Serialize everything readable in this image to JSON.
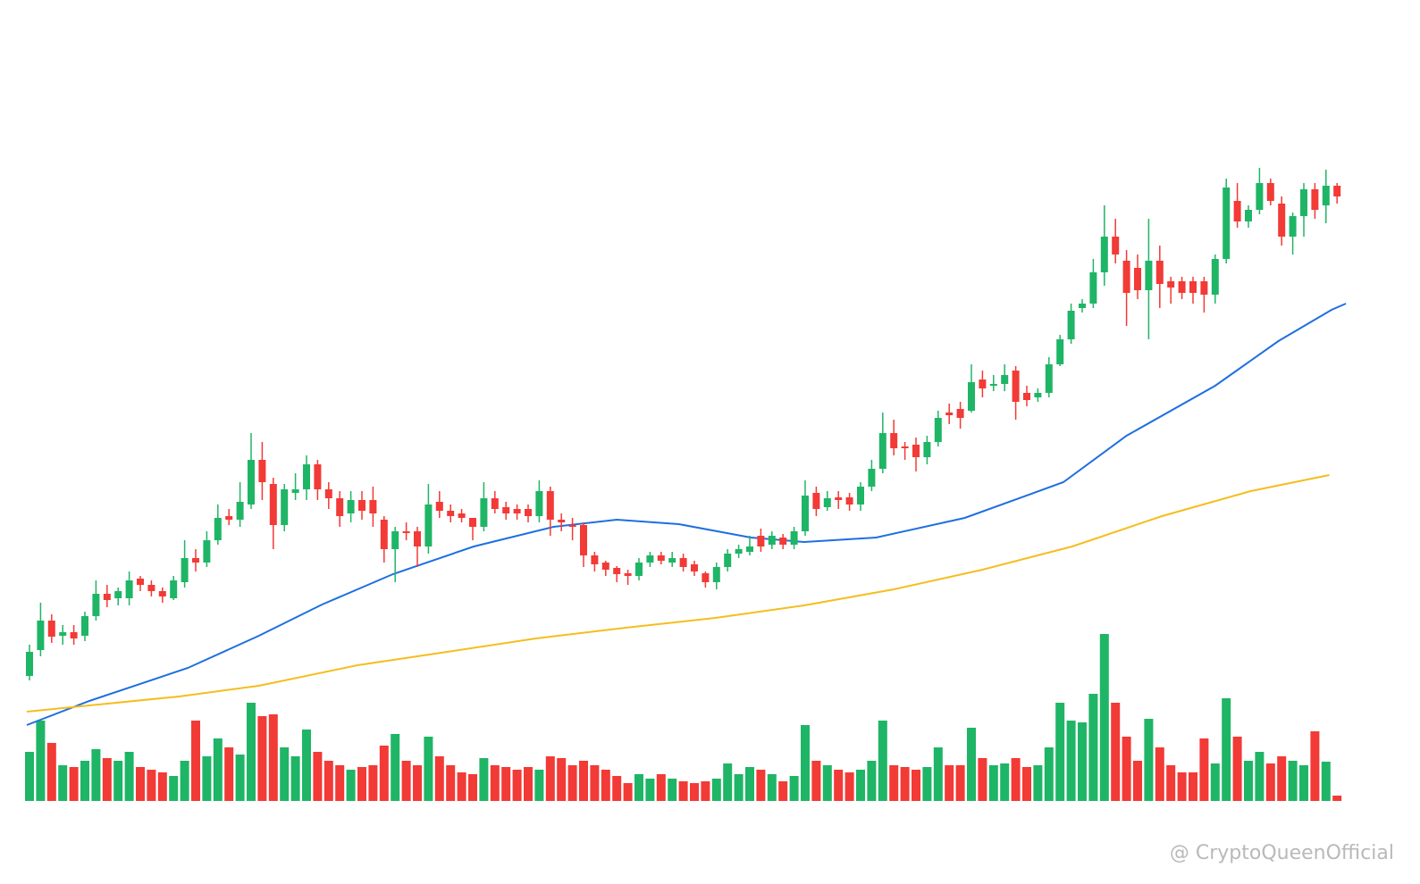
{
  "chart_data": {
    "type": "candlestick",
    "watermark": "@ CryptoQueenOfficial",
    "up_color": "#1fb566",
    "down_color": "#f23a36",
    "ylim": [
      0,
      990
    ],
    "volume_ylim": [
      0,
      200
    ],
    "open": [
      233,
      262,
      295,
      278,
      282,
      278,
      300,
      325,
      320,
      320,
      342,
      335,
      328,
      320,
      338,
      365,
      360,
      385,
      412,
      408,
      425,
      475,
      448,
      402,
      438,
      442,
      470,
      442,
      432,
      415,
      430,
      430,
      408,
      375,
      395,
      395,
      378,
      428,
      418,
      415,
      410,
      400,
      432,
      422,
      420,
      420,
      412,
      440,
      408,
      402,
      402,
      368,
      360,
      354,
      348,
      345,
      360,
      368,
      360,
      365,
      358,
      348,
      338,
      355,
      370,
      372,
      390,
      380,
      388,
      380,
      395,
      438,
      422,
      433,
      433,
      425,
      445,
      465,
      505,
      490,
      492,
      478,
      495,
      528,
      532,
      530,
      565,
      558,
      560,
      575,
      550,
      545,
      550,
      582,
      610,
      645,
      650,
      685,
      725,
      698,
      690,
      665,
      698,
      675,
      675,
      675,
      675,
      660,
      700,
      765,
      742,
      755,
      785,
      762,
      725,
      748,
      778,
      760,
      782
    ],
    "high": [
      268,
      315,
      302,
      290,
      290,
      305,
      340,
      335,
      332,
      350,
      345,
      340,
      332,
      345,
      385,
      375,
      395,
      425,
      420,
      450,
      505,
      495,
      455,
      448,
      460,
      480,
      475,
      450,
      440,
      440,
      440,
      445,
      412,
      400,
      405,
      400,
      448,
      440,
      425,
      420,
      410,
      450,
      440,
      428,
      425,
      425,
      452,
      445,
      415,
      410,
      405,
      372,
      362,
      356,
      352,
      365,
      372,
      372,
      372,
      370,
      362,
      350,
      360,
      375,
      380,
      390,
      398,
      395,
      392,
      400,
      452,
      445,
      440,
      440,
      438,
      450,
      475,
      528,
      520,
      495,
      500,
      502,
      530,
      538,
      540,
      582,
      575,
      570,
      582,
      580,
      558,
      555,
      590,
      615,
      650,
      655,
      700,
      760,
      745,
      710,
      705,
      745,
      715,
      680,
      680,
      680,
      680,
      705,
      790,
      785,
      760,
      802,
      790,
      770,
      752,
      785,
      785,
      800,
      785
    ],
    "low": [
      228,
      255,
      270,
      268,
      268,
      272,
      295,
      310,
      312,
      312,
      328,
      322,
      315,
      318,
      332,
      350,
      355,
      380,
      402,
      400,
      420,
      430,
      375,
      395,
      430,
      430,
      430,
      420,
      400,
      405,
      408,
      400,
      360,
      338,
      385,
      355,
      370,
      410,
      405,
      405,
      385,
      395,
      415,
      408,
      408,
      405,
      405,
      390,
      395,
      385,
      355,
      350,
      345,
      338,
      335,
      340,
      355,
      358,
      355,
      350,
      345,
      332,
      330,
      350,
      365,
      368,
      372,
      375,
      375,
      375,
      390,
      412,
      418,
      420,
      418,
      418,
      440,
      460,
      480,
      475,
      462,
      470,
      490,
      515,
      510,
      528,
      545,
      552,
      552,
      520,
      535,
      540,
      545,
      580,
      605,
      640,
      645,
      670,
      695,
      625,
      655,
      610,
      645,
      650,
      655,
      650,
      640,
      650,
      695,
      735,
      735,
      750,
      760,
      715,
      705,
      725,
      745,
      740,
      762
    ],
    "close": [
      260,
      295,
      277,
      282,
      275,
      300,
      325,
      318,
      328,
      340,
      335,
      328,
      322,
      340,
      365,
      360,
      385,
      410,
      408,
      428,
      475,
      450,
      402,
      442,
      442,
      470,
      442,
      432,
      412,
      430,
      418,
      415,
      375,
      395,
      393,
      378,
      425,
      418,
      412,
      410,
      400,
      432,
      420,
      415,
      415,
      412,
      440,
      408,
      405,
      400,
      368,
      358,
      352,
      347,
      345,
      360,
      368,
      362,
      365,
      355,
      350,
      338,
      355,
      370,
      375,
      378,
      378,
      390,
      380,
      395,
      435,
      420,
      432,
      430,
      425,
      445,
      465,
      505,
      488,
      488,
      478,
      495,
      522,
      525,
      522,
      562,
      555,
      560,
      570,
      540,
      542,
      550,
      582,
      610,
      642,
      650,
      685,
      725,
      705,
      662,
      665,
      698,
      672,
      668,
      662,
      662,
      660,
      700,
      780,
      742,
      755,
      785,
      765,
      725,
      748,
      778,
      755,
      782,
      770
    ],
    "volume": [
      55,
      90,
      65,
      40,
      38,
      45,
      58,
      48,
      45,
      55,
      38,
      35,
      32,
      28,
      45,
      90,
      50,
      70,
      60,
      52,
      110,
      95,
      97,
      60,
      50,
      80,
      55,
      45,
      40,
      35,
      38,
      40,
      62,
      75,
      45,
      40,
      72,
      50,
      40,
      32,
      30,
      48,
      40,
      38,
      35,
      38,
      35,
      50,
      48,
      40,
      45,
      40,
      35,
      28,
      20,
      30,
      25,
      30,
      25,
      22,
      20,
      22,
      25,
      42,
      30,
      38,
      35,
      30,
      22,
      28,
      85,
      45,
      40,
      35,
      32,
      35,
      45,
      90,
      40,
      38,
      35,
      38,
      60,
      40,
      40,
      82,
      48,
      40,
      42,
      48,
      38,
      40,
      60,
      110,
      90,
      88,
      120,
      187,
      110,
      72,
      45,
      92,
      60,
      40,
      32,
      32,
      70,
      42,
      115,
      72,
      45,
      55,
      42,
      50,
      45,
      40,
      78,
      44,
      6
    ],
    "moving_averages": [
      {
        "color": "#1e6fe0",
        "x": [
          -0.24,
          5.4,
          14.3,
          20.7,
          26.4,
          32.8,
          40.1,
          47.3,
          53,
          58.6,
          65.1,
          69.9,
          76.4,
          84.4,
          93.3,
          99,
          107,
          112.7,
          117.5,
          118.8
        ],
        "values": [
          178,
          205,
          242,
          278,
          313,
          347,
          378,
          400,
          408,
          403,
          388,
          383,
          388,
          410,
          450,
          502,
          558,
          608,
          643,
          650
        ]
      },
      {
        "color": "#f5bd1f",
        "x": [
          -0.24,
          5.4,
          13.5,
          20.7,
          29.6,
          37.7,
          45.7,
          53.8,
          61.9,
          69.9,
          78,
          86,
          94.1,
          102.2,
          110.2,
          117.3
        ],
        "values": [
          193,
          200,
          210,
          222,
          245,
          260,
          275,
          287,
          298,
          312,
          330,
          352,
          378,
          412,
          440,
          458
        ]
      }
    ]
  }
}
